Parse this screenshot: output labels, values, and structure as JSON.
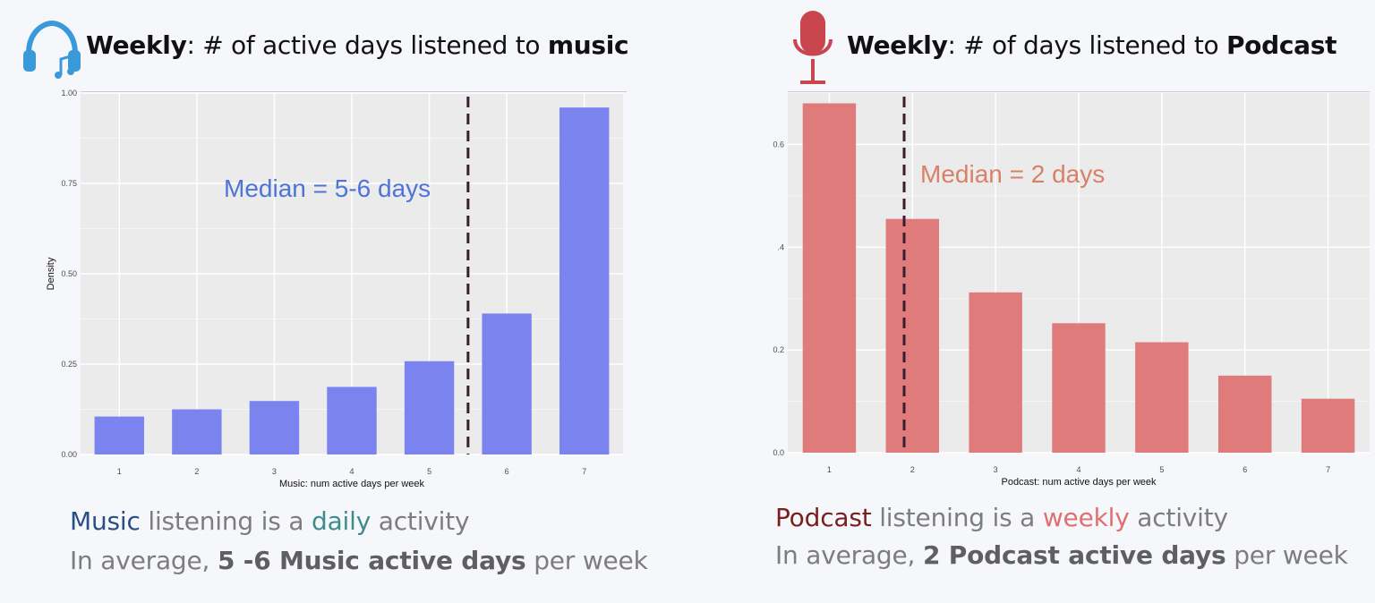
{
  "music": {
    "title_bold": "Weekly",
    "title_mid": ": # of active days listened to ",
    "title_end": "music",
    "median_label": "Median = 5-6 days",
    "caption_line1": {
      "w1": "Music",
      "w2": " listening is a ",
      "w3": "daily",
      "w4": " activity"
    },
    "caption_line2": {
      "w1": "In average,  ",
      "w2": "5 -6 Music active days",
      "w3": " per week"
    },
    "colors": {
      "bar": "#7b84ee",
      "word1": "#2a4f86",
      "word2": "#3f8c8c",
      "median_text": "#4f74d8"
    },
    "icon": "headphones-music-icon"
  },
  "podcast": {
    "title_bold": "Weekly",
    "title_mid": ": # of days listened to ",
    "title_end": "Podcast",
    "median_label": "Median = 2 days",
    "caption_line1": {
      "w1": "Podcast",
      "w2": " listening is a ",
      "w3": "weekly",
      "w4": " activity"
    },
    "caption_line2": {
      "w1": "In average,  ",
      "w2": "2 Podcast active days",
      "w3": " per week"
    },
    "colors": {
      "bar": "#e07b7b",
      "word1": "#7a1f1f",
      "word2": "#e07070",
      "median_text": "#d98068"
    },
    "icon": "microphone-icon"
  },
  "chart_data": [
    {
      "type": "bar",
      "x": [
        1,
        2,
        3,
        4,
        5,
        6,
        7
      ],
      "values": [
        0.105,
        0.125,
        0.148,
        0.187,
        0.258,
        0.39,
        0.96
      ],
      "xlabel": "Music: num active days per week",
      "ylabel": "Density",
      "ylim": [
        0,
        1.0
      ],
      "yticks": [
        "0.00",
        "0.25",
        "0.50",
        "0.75",
        "1.00"
      ],
      "ytick_values": [
        0,
        0.25,
        0.5,
        0.75,
        1.0
      ],
      "median_x": 5.5,
      "grid": true
    },
    {
      "type": "bar",
      "x": [
        1,
        2,
        3,
        4,
        5,
        6,
        7
      ],
      "values": [
        0.68,
        0.455,
        0.312,
        0.252,
        0.215,
        0.15,
        0.105
      ],
      "xlabel": "Podcast: num active days per week",
      "ylabel": "",
      "ylim": [
        0,
        0.7
      ],
      "yticks": [
        "0.0",
        "0.2",
        ".4",
        "0.6"
      ],
      "ytick_values": [
        0,
        0.2,
        0.4,
        0.6
      ],
      "median_x": 1.9,
      "grid": true
    }
  ]
}
